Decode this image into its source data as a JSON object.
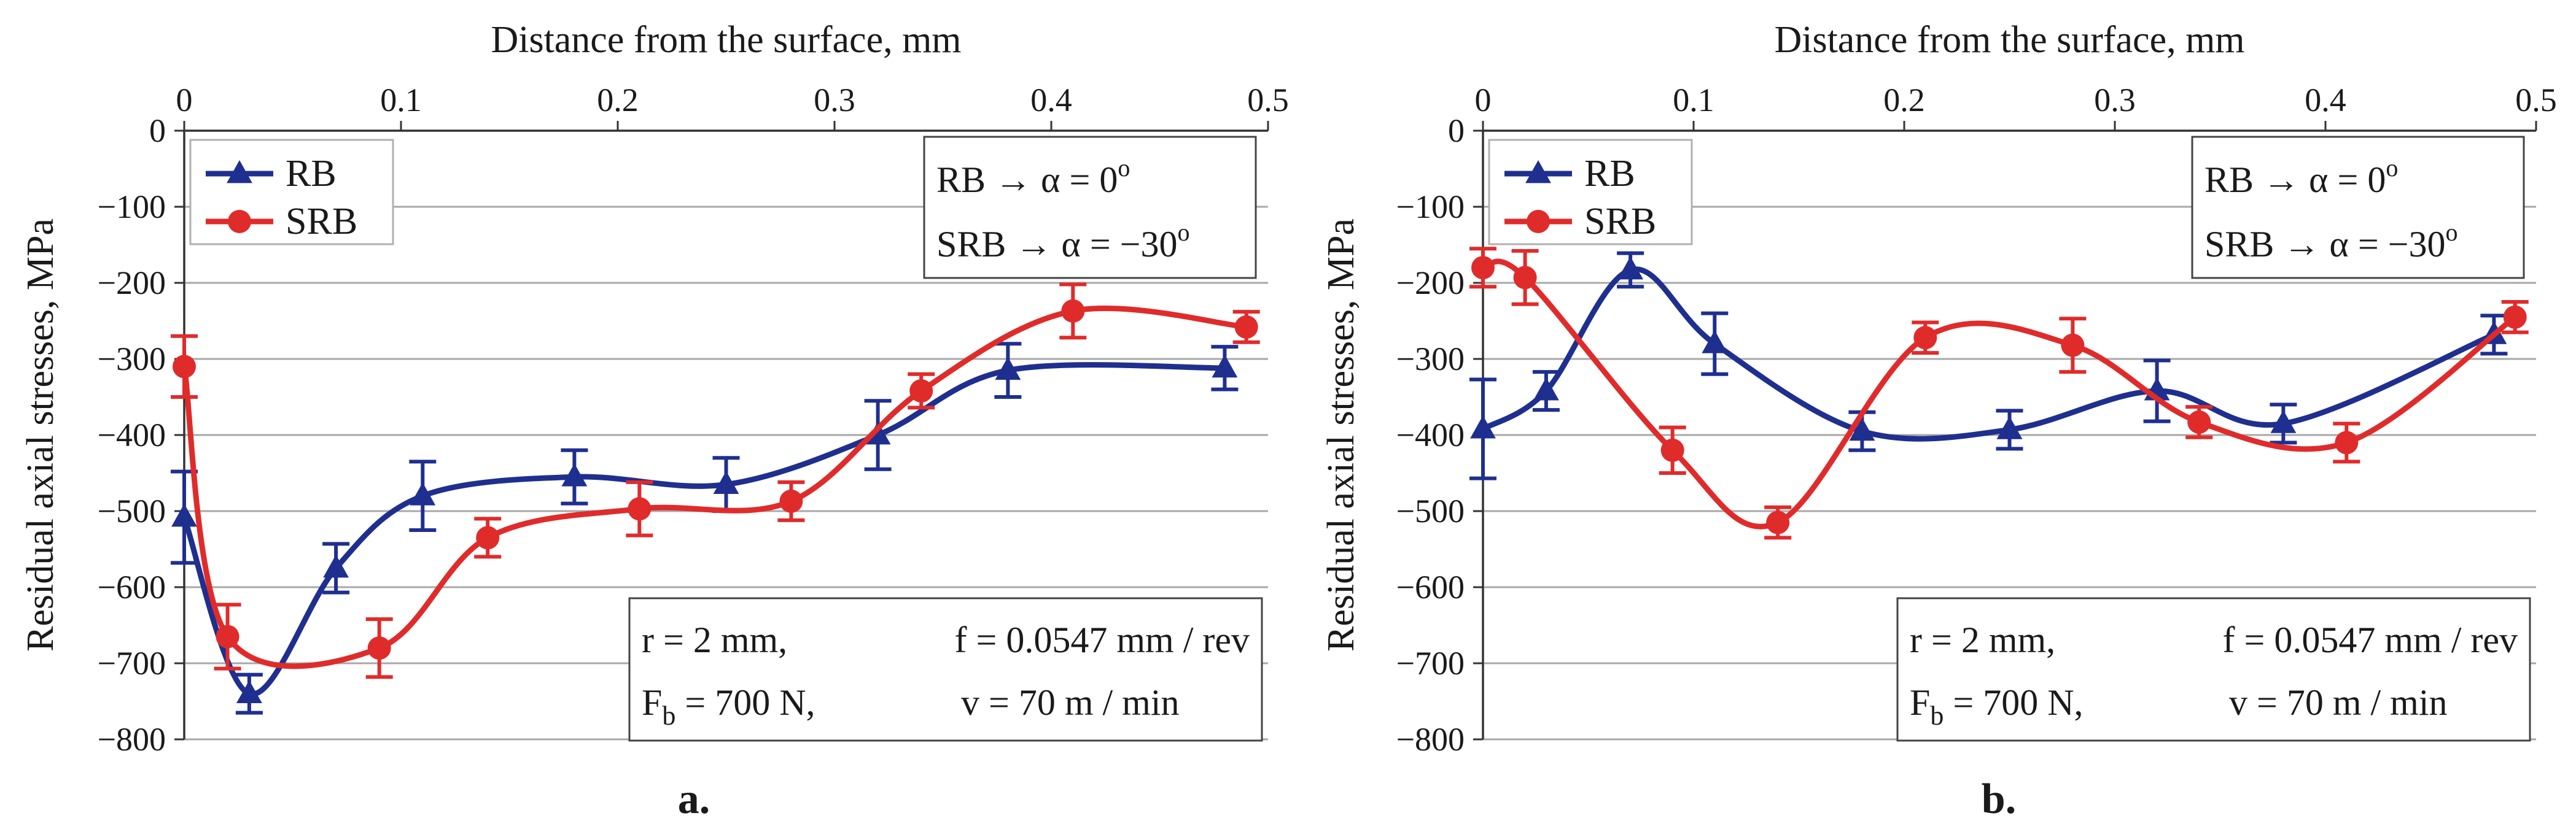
{
  "figure": {
    "panels": [
      {
        "label": "a.",
        "x_axis_title": "Distance from the surface, mm",
        "y_axis_title": "Residual axial stresses, MPa",
        "legend": [
          "RB",
          "SRB"
        ],
        "angle_box": {
          "line1": "RB → α = 0",
          "line1_sup": "o",
          "line2": "SRB → α = −30",
          "line2_sup": "o"
        },
        "param_box": {
          "r": "r = 2 mm,",
          "f": "f = 0.0547 mm / rev",
          "fb_main": "F",
          "fb_sub": "b",
          "fb_rest": " = 700 N,",
          "v": "v = 70 m / min"
        }
      },
      {
        "label": "b.",
        "x_axis_title": "Distance from the surface, mm",
        "y_axis_title": "Residual axial stresses, MPa",
        "legend": [
          "RB",
          "SRB"
        ],
        "angle_box": {
          "line1": "RB → α = 0",
          "line1_sup": "o",
          "line2": "SRB → α = −30",
          "line2_sup": "o"
        },
        "param_box": {
          "r": "r = 2 mm,",
          "f": "f = 0.0547 mm / rev",
          "fb_main": "F",
          "fb_sub": "b",
          "fb_rest": " = 700 N,",
          "v": "v = 70 m / min"
        }
      }
    ]
  },
  "chart_data": [
    {
      "type": "line",
      "panel": "a.",
      "xlabel": "Distance from the surface, mm",
      "ylabel": "Residual axial stresses, MPa",
      "xlim": [
        0,
        0.5
      ],
      "ylim": [
        -800,
        0
      ],
      "x_ticks": [
        "0",
        "0.1",
        "0.2",
        "0.3",
        "0.4",
        "0.5"
      ],
      "y_ticks": [
        "0",
        "-100",
        "-200",
        "-300",
        "-400",
        "-500",
        "-600",
        "-700",
        "-800"
      ],
      "x_axis_position": "top",
      "legend_position": "top-left",
      "series": [
        {
          "name": "RB",
          "color": "#1f2f8f",
          "marker": "triangle",
          "x": [
            0,
            0.03,
            0.07,
            0.11,
            0.18,
            0.25,
            0.32,
            0.38,
            0.48
          ],
          "y": [
            -508,
            -740,
            -575,
            -480,
            -455,
            -465,
            -400,
            -315,
            -312
          ],
          "err": [
            60,
            25,
            32,
            45,
            35,
            35,
            45,
            35,
            28
          ]
        },
        {
          "name": "SRB",
          "color": "#e02b2b",
          "marker": "circle",
          "x": [
            0,
            0.02,
            0.09,
            0.14,
            0.21,
            0.28,
            0.34,
            0.41,
            0.49
          ],
          "y": [
            -310,
            -665,
            -680,
            -535,
            -497,
            -487,
            -342,
            -237,
            -258
          ],
          "err": [
            40,
            42,
            38,
            25,
            35,
            25,
            22,
            35,
            20
          ]
        }
      ]
    },
    {
      "type": "line",
      "panel": "b.",
      "xlabel": "Distance from the surface, mm",
      "ylabel": "Residual axial stresses, MPa",
      "xlim": [
        0,
        0.5
      ],
      "ylim": [
        -800,
        0
      ],
      "x_ticks": [
        "0",
        "0.1",
        "0.2",
        "0.3",
        "0.4",
        "0.5"
      ],
      "y_ticks": [
        "0",
        "-100",
        "-200",
        "-300",
        "-400",
        "-500",
        "-600",
        "-700",
        "-800"
      ],
      "x_axis_position": "top",
      "legend_position": "top-left",
      "series": [
        {
          "name": "RB",
          "color": "#1f2f8f",
          "marker": "triangle",
          "x": [
            0,
            0.03,
            0.07,
            0.11,
            0.18,
            0.25,
            0.32,
            0.38,
            0.48
          ],
          "y": [
            -392,
            -342,
            -183,
            -280,
            -395,
            -393,
            -342,
            -385,
            -268
          ],
          "err": [
            65,
            25,
            22,
            40,
            25,
            25,
            40,
            25,
            25
          ]
        },
        {
          "name": "SRB",
          "color": "#e02b2b",
          "marker": "circle",
          "x": [
            0,
            0.02,
            0.09,
            0.14,
            0.21,
            0.28,
            0.34,
            0.41,
            0.49
          ],
          "y": [
            -180,
            -193,
            -420,
            -515,
            -272,
            -282,
            -383,
            -410,
            -245
          ],
          "err": [
            25,
            35,
            30,
            20,
            20,
            35,
            20,
            25,
            20
          ]
        }
      ]
    }
  ]
}
